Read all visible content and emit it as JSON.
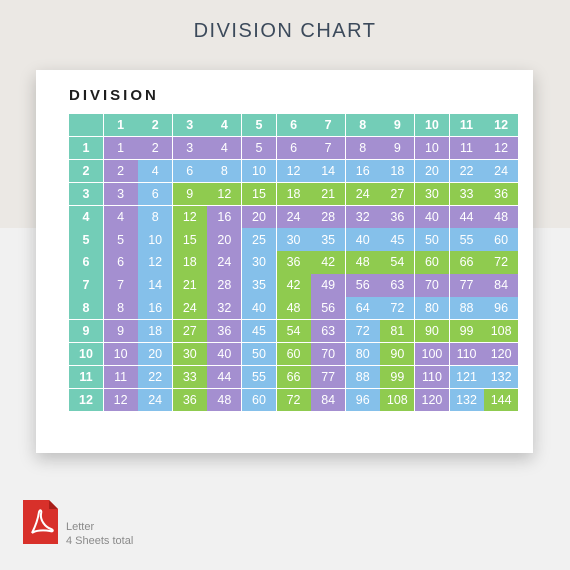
{
  "page": {
    "title": "DIVISION CHART"
  },
  "sheet": {
    "title": "DIVISION"
  },
  "colors": {
    "header": "#73cdb7",
    "purple": "#a48fd0",
    "blue": "#85c0ea",
    "green": "#8fcb4f",
    "pdf_red": "#d8302a"
  },
  "chart_data": {
    "type": "table",
    "column_headers": [
      "1",
      "2",
      "3",
      "4",
      "5",
      "6",
      "7",
      "8",
      "9",
      "10",
      "11",
      "12"
    ],
    "row_headers": [
      "1",
      "2",
      "3",
      "4",
      "5",
      "6",
      "7",
      "8",
      "9",
      "10",
      "11",
      "12"
    ],
    "rows": [
      [
        "1",
        "2",
        "3",
        "4",
        "5",
        "6",
        "7",
        "8",
        "9",
        "10",
        "11",
        "12"
      ],
      [
        "2",
        "4",
        "6",
        "8",
        "10",
        "12",
        "14",
        "16",
        "18",
        "20",
        "22",
        "24"
      ],
      [
        "3",
        "6",
        "9",
        "12",
        "15",
        "18",
        "21",
        "24",
        "27",
        "30",
        "33",
        "36"
      ],
      [
        "4",
        "8",
        "12",
        "16",
        "20",
        "24",
        "28",
        "32",
        "36",
        "40",
        "44",
        "48"
      ],
      [
        "5",
        "10",
        "15",
        "20",
        "25",
        "30",
        "35",
        "40",
        "45",
        "50",
        "55",
        "60"
      ],
      [
        "6",
        "12",
        "18",
        "24",
        "30",
        "36",
        "42",
        "48",
        "54",
        "60",
        "66",
        "72"
      ],
      [
        "7",
        "14",
        "21",
        "28",
        "35",
        "42",
        "49",
        "56",
        "63",
        "70",
        "77",
        "84"
      ],
      [
        "8",
        "16",
        "24",
        "32",
        "40",
        "48",
        "56",
        "64",
        "72",
        "80",
        "88",
        "96"
      ],
      [
        "9",
        "18",
        "27",
        "36",
        "45",
        "54",
        "63",
        "72",
        "81",
        "90",
        "99",
        "108"
      ],
      [
        "10",
        "20",
        "30",
        "40",
        "50",
        "60",
        "70",
        "80",
        "90",
        "100",
        "110",
        "120"
      ],
      [
        "11",
        "22",
        "33",
        "44",
        "55",
        "66",
        "77",
        "88",
        "99",
        "110",
        "121",
        "132"
      ],
      [
        "12",
        "24",
        "36",
        "48",
        "60",
        "72",
        "84",
        "96",
        "108",
        "120",
        "132",
        "144"
      ]
    ]
  },
  "file": {
    "icon": "pdf-icon",
    "format": "Letter",
    "sheets": "4 Sheets total"
  }
}
